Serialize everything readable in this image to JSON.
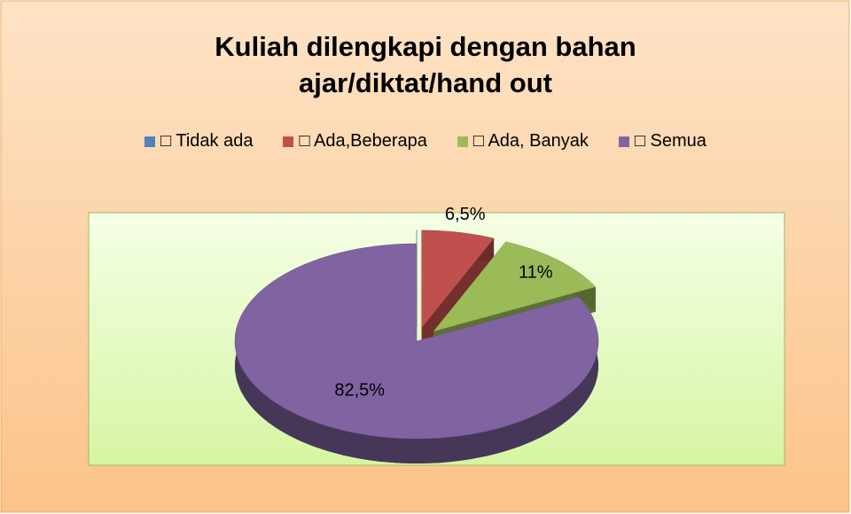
{
  "chart_data": {
    "type": "pie3d",
    "title": "Kuliah dilengkapi dengan bahan ajar/diktat/hand out",
    "categories": [
      "□ Tidak ada",
      "□ Ada,Beberapa",
      "□ Ada, Banyak",
      "□ Semua"
    ],
    "values": [
      0,
      6.5,
      11,
      82.5
    ],
    "value_labels": [
      null,
      "6,5%",
      "11%",
      "82,5%"
    ],
    "colors": [
      "#4f81bd",
      "#c0504d",
      "#9bbb59",
      "#8064a2"
    ],
    "legend": "top"
  }
}
